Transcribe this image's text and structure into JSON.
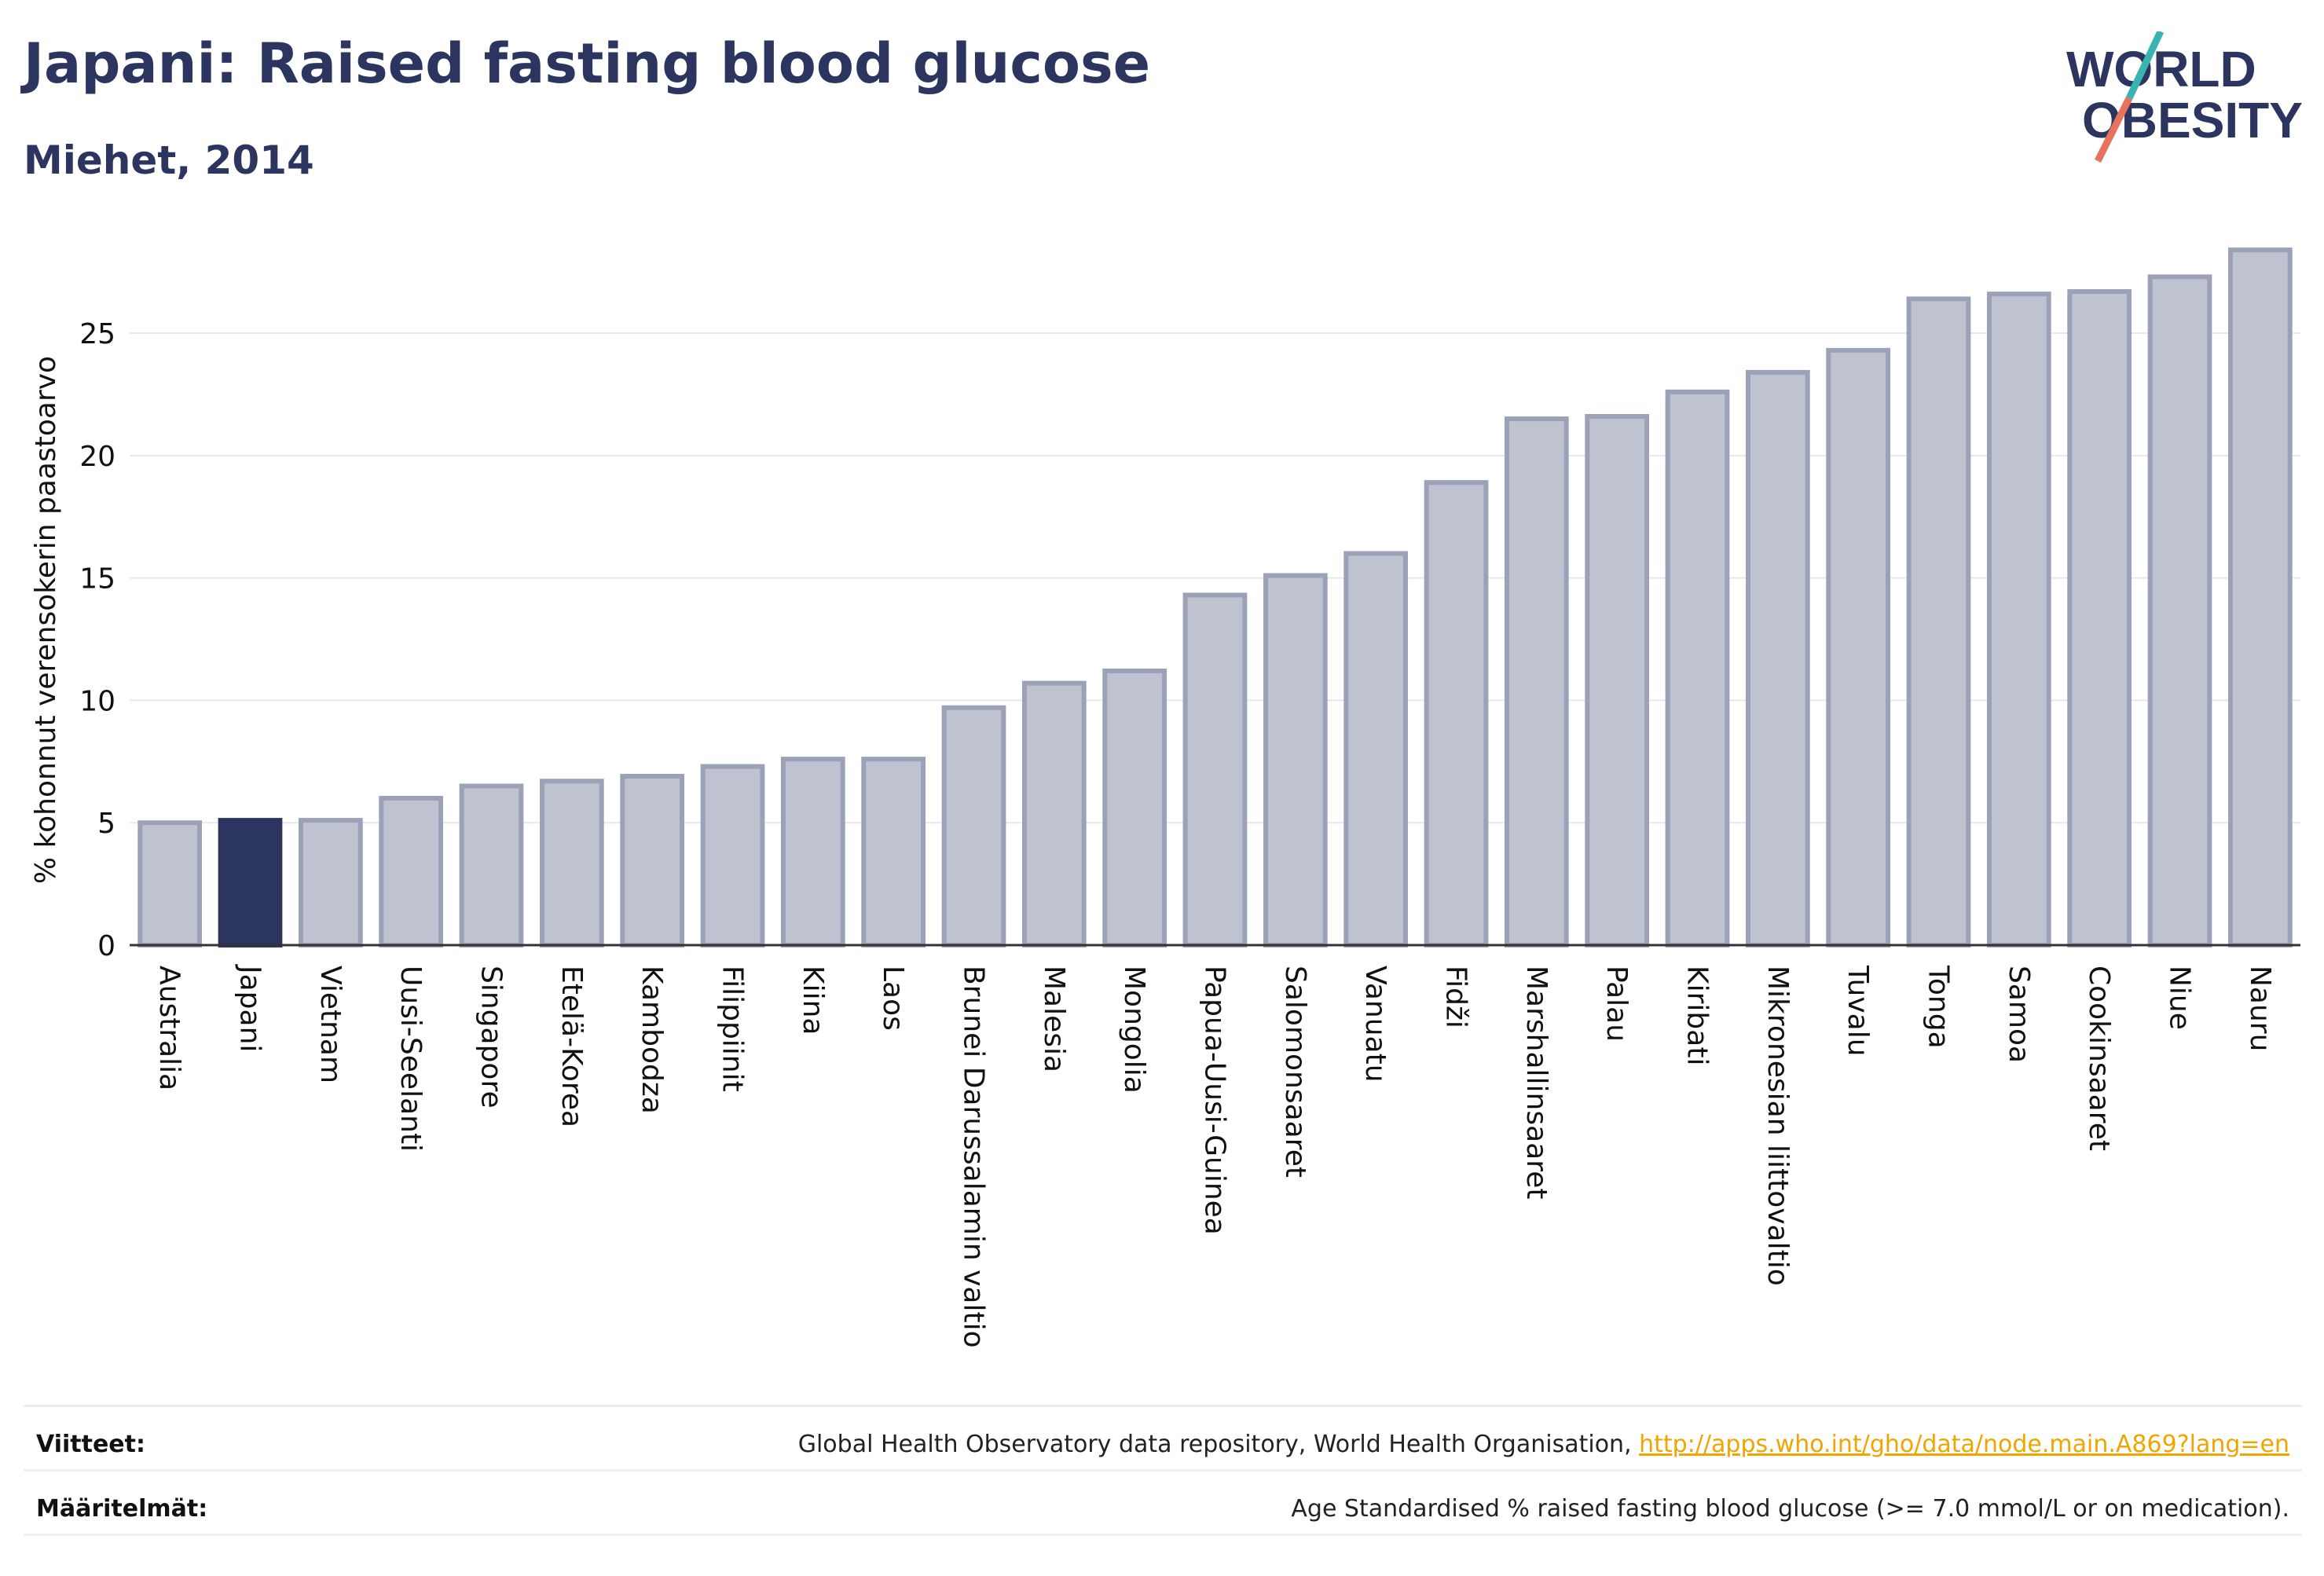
{
  "header": {
    "title": "Japani: Raised fasting blood glucose",
    "subtitle": "Miehet, 2014"
  },
  "logo": {
    "line1": "WORLD",
    "line2": "OBESITY",
    "icon": "world-obesity-logo-icon",
    "colors": {
      "text": "#2b3560",
      "slash_top": "#3bb3b0",
      "slash_bottom": "#e8735d"
    }
  },
  "colors": {
    "bar": "#bfc3d0",
    "bar_stroke": "#9ba2b8",
    "highlight": "#2b3560",
    "grid": "#e6e8ee",
    "axis": "#333333"
  },
  "chart_data": {
    "type": "bar",
    "ylabel": "% kohonnut verensokerin paastoarvo",
    "xlabel": "",
    "ylim": [
      0,
      28.5
    ],
    "yticks": [
      0,
      5,
      10,
      15,
      20,
      25
    ],
    "grid": true,
    "highlight": "Japani",
    "categories": [
      "Australia",
      "Japani",
      "Vietnam",
      "Uusi-Seelanti",
      "Singapore",
      "Etelä-Korea",
      "Kambodza",
      "Filippiinit",
      "Kiina",
      "Laos",
      "Brunei Darussalamin valtio",
      "Malesia",
      "Mongolia",
      "Papua-Uusi-Guinea",
      "Salomonsaaret",
      "Vanuatu",
      "Fidži",
      "Marshallinsaaret",
      "Palau",
      "Kiribati",
      "Mikronesian liittovaltio",
      "Tuvalu",
      "Tonga",
      "Samoa",
      "Cookinsaaret",
      "Niue",
      "Nauru"
    ],
    "values": [
      5.0,
      5.1,
      5.1,
      6.0,
      6.5,
      6.7,
      6.9,
      7.3,
      7.6,
      7.6,
      9.7,
      10.7,
      11.2,
      14.3,
      15.1,
      16.0,
      18.9,
      21.5,
      21.6,
      22.6,
      23.4,
      24.3,
      26.4,
      26.6,
      26.7,
      27.3,
      28.4
    ]
  },
  "footer": {
    "sources_label": "Viitteet:",
    "sources_text": "Global Health Observatory data repository, World Health Organisation, ",
    "sources_link": "http://apps.who.int/gho/data/node.main.A869?lang=en",
    "definitions_label": "Määritelmät:",
    "definitions_text": "Age Standardised % raised fasting blood glucose (>= 7.0 mmol/L or on medication)."
  }
}
